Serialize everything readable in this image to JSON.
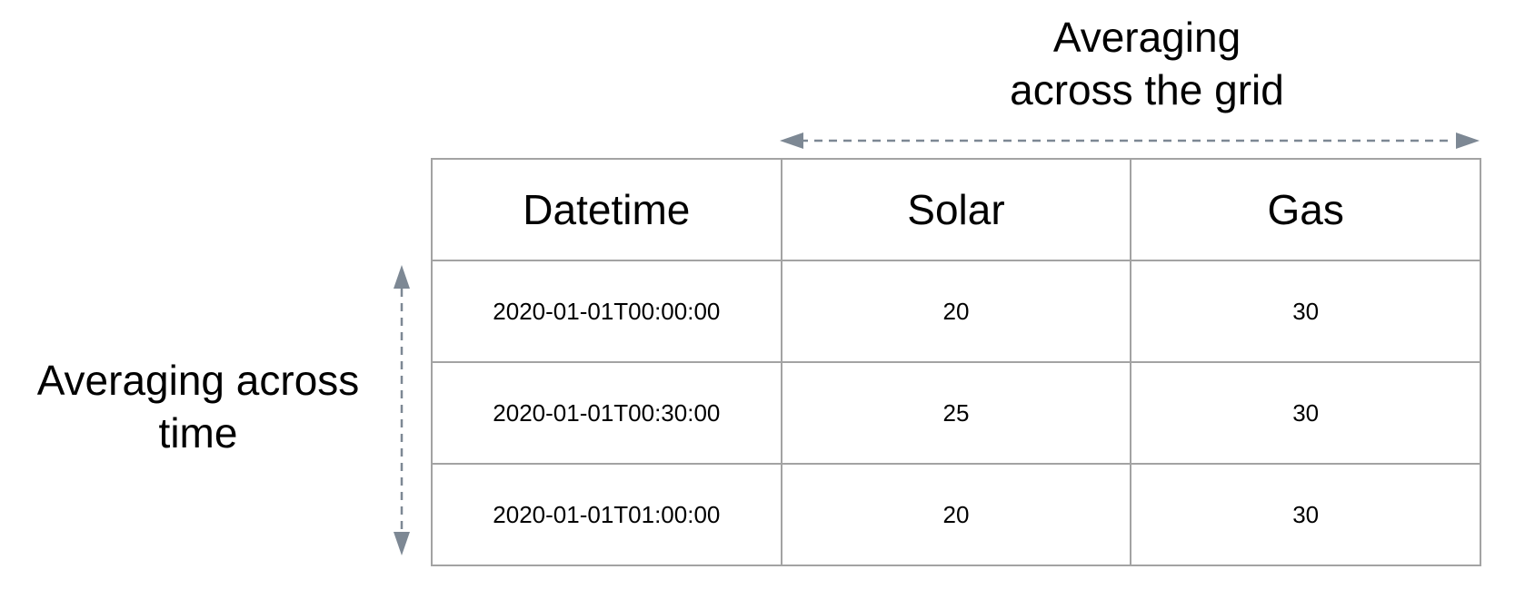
{
  "labels": {
    "grid_axis": [
      "Averaging",
      "across the grid"
    ],
    "time_axis": [
      "Averaging across",
      "time"
    ]
  },
  "table": {
    "columns": [
      "Datetime",
      "Solar",
      "Gas"
    ],
    "rows": [
      [
        "2020-01-01T00:00:00",
        "20",
        "30"
      ],
      [
        "2020-01-01T00:30:00",
        "25",
        "30"
      ],
      [
        "2020-01-01T01:00:00",
        "20",
        "30"
      ]
    ]
  },
  "colors": {
    "arrow": "#7d8894",
    "grid_line": "#a3a3a3",
    "text": "#000000"
  }
}
